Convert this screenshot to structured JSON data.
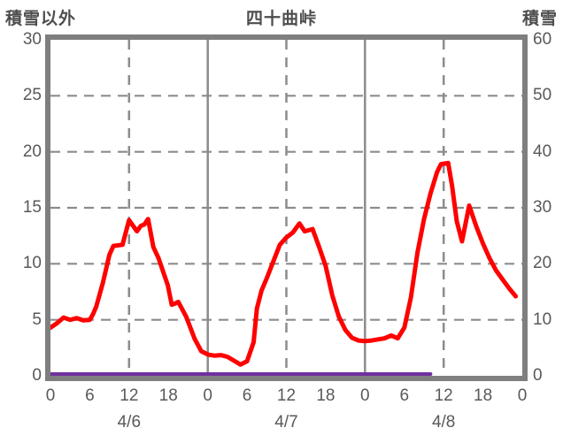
{
  "header": {
    "left_label": "積雪以外",
    "title": "四十曲峠",
    "right_label": "積雪"
  },
  "colors": {
    "background": "#ffffff",
    "border": "#7f7f7f",
    "grid": "#8c8c8c",
    "text": "#595959",
    "red_series": "#ff0000",
    "purple_series": "#7030a0"
  },
  "chart_data": {
    "type": "line",
    "title": "四十曲峠",
    "left_axis": {
      "label": "積雪以外",
      "min": 0,
      "max": 30,
      "ticks": [
        0,
        5,
        10,
        15,
        20,
        25,
        30
      ]
    },
    "right_axis": {
      "label": "積雪",
      "min": 0,
      "max": 60,
      "ticks": [
        0,
        10,
        20,
        30,
        40,
        50,
        60
      ]
    },
    "x_axis": {
      "total_hours": 72,
      "tick_step": 6,
      "tick_labels": [
        "0",
        "6",
        "12",
        "18",
        "0",
        "6",
        "12",
        "18",
        "0",
        "6",
        "12",
        "18",
        "0"
      ],
      "day_labels": [
        {
          "label": "4/6",
          "hour": 12
        },
        {
          "label": "4/7",
          "hour": 36
        },
        {
          "label": "4/8",
          "hour": 60
        }
      ],
      "solid_lines_hours": [
        24,
        48
      ],
      "dashed_lines_hours": [
        12,
        36,
        60
      ]
    },
    "grid": {
      "horizontal_dashed_values": [
        5,
        10,
        15,
        20,
        25
      ]
    },
    "series": [
      {
        "name": "積雪以外",
        "semantic": "non-snow-series-line",
        "axis": "left",
        "color": "#ff0000",
        "width": 5,
        "points": [
          [
            0,
            4.3
          ],
          [
            1,
            4.7
          ],
          [
            2,
            5.2
          ],
          [
            3,
            5.0
          ],
          [
            4,
            5.15
          ],
          [
            5,
            4.95
          ],
          [
            6,
            5.0
          ],
          [
            6.5,
            5.5
          ],
          [
            7,
            6.2
          ],
          [
            8,
            8.3
          ],
          [
            9,
            10.8
          ],
          [
            9.6,
            11.6
          ],
          [
            11,
            11.7
          ],
          [
            12,
            13.9
          ],
          [
            13.2,
            12.9
          ],
          [
            13.8,
            13.4
          ],
          [
            14.3,
            13.5
          ],
          [
            14.9,
            14.0
          ],
          [
            15.7,
            11.5
          ],
          [
            16.5,
            10.5
          ],
          [
            17.9,
            8.1
          ],
          [
            18.5,
            6.35
          ],
          [
            19,
            6.45
          ],
          [
            19.5,
            6.6
          ],
          [
            20.7,
            5.3
          ],
          [
            22,
            3.3
          ],
          [
            23,
            2.2
          ],
          [
            24,
            1.9
          ],
          [
            25,
            1.8
          ],
          [
            26,
            1.85
          ],
          [
            27,
            1.7
          ],
          [
            28,
            1.35
          ],
          [
            29,
            1.0
          ],
          [
            30,
            1.3
          ],
          [
            31,
            3.0
          ],
          [
            31.5,
            6.0
          ],
          [
            32.2,
            7.6
          ],
          [
            33,
            8.7
          ],
          [
            34,
            10.2
          ],
          [
            35,
            11.7
          ],
          [
            36,
            12.35
          ],
          [
            37,
            12.8
          ],
          [
            38,
            13.6
          ],
          [
            38.8,
            12.9
          ],
          [
            40,
            13.1
          ],
          [
            41,
            11.5
          ],
          [
            42,
            9.8
          ],
          [
            43,
            7.2
          ],
          [
            44,
            5.3
          ],
          [
            45,
            4.1
          ],
          [
            46,
            3.4
          ],
          [
            47,
            3.15
          ],
          [
            48,
            3.1
          ],
          [
            49,
            3.15
          ],
          [
            50,
            3.25
          ],
          [
            51,
            3.35
          ],
          [
            52,
            3.6
          ],
          [
            53,
            3.35
          ],
          [
            54,
            4.3
          ],
          [
            55,
            7.0
          ],
          [
            56,
            11.0
          ],
          [
            57,
            14.0
          ],
          [
            58,
            16.3
          ],
          [
            59,
            18.2
          ],
          [
            59.6,
            18.9
          ],
          [
            60.7,
            19.0
          ],
          [
            61.3,
            16.9
          ],
          [
            62,
            13.8
          ],
          [
            62.8,
            12.0
          ],
          [
            63.9,
            15.2
          ],
          [
            65,
            13.3
          ],
          [
            66,
            11.8
          ],
          [
            67,
            10.5
          ],
          [
            68,
            9.4
          ],
          [
            69,
            8.6
          ],
          [
            70,
            7.8
          ],
          [
            71,
            7.1
          ]
        ]
      },
      {
        "name": "積雪",
        "semantic": "snow-depth-series-line",
        "axis": "right",
        "color": "#7030a0",
        "width": 4,
        "points": [
          [
            0,
            0
          ],
          [
            58,
            0
          ]
        ]
      }
    ]
  }
}
